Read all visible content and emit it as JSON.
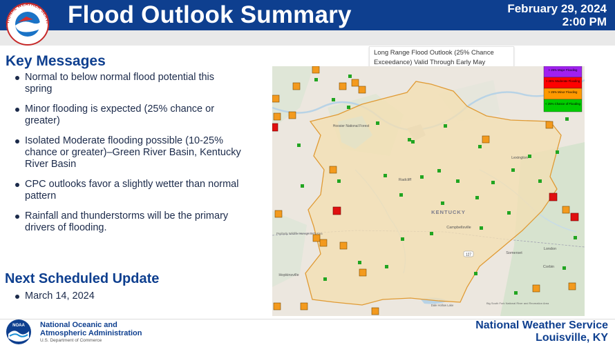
{
  "header": {
    "title": "Flood Outlook Summary",
    "date": "February 29, 2024",
    "time": "2:00 PM",
    "logo_text": "NATIONAL WEATHER SERVICE"
  },
  "key_messages": {
    "heading": "Key Messages",
    "items": [
      "Normal to below normal flood potential this spring",
      "Minor flooding is expected (25% chance or greater)",
      "Isolated Moderate flooding possible (10-25% chance or greater)–Green River Basin, Kentucky River Basin",
      "CPC outlooks favor a slightly wetter than normal pattern",
      "Rainfall and thunderstorms will be the primary drivers of flooding."
    ]
  },
  "next_update": {
    "heading": "Next Scheduled Update",
    "date": "March 14, 2024"
  },
  "map": {
    "caption_line1": "Long Range Flood Outlook (25% Chance",
    "caption_line2": "Exceedance) Valid Through Early May",
    "legend": [
      {
        "label": "> 25% Major Flooding",
        "color": "#a020f0"
      },
      {
        "label": "> 25% Moderate Flooding",
        "color": "#ff0000"
      },
      {
        "label": "> 25% Minor Flooding",
        "color": "#ff9900"
      },
      {
        "label": "< 25% Chance of Flooding",
        "color": "#00cc00"
      }
    ],
    "labels": {
      "state": "KENTUCKY",
      "forest": "Hoosier National Forest",
      "radcliff": "Radcliff",
      "lexington": "Lexington",
      "campbellsville": "Campbellsville",
      "somerset": "Somerset",
      "london": "London",
      "corbin": "Corbin",
      "hopkinsville": "Hopkinsville",
      "peabody": "Peabody Wildlife Management Area",
      "dale_hollow": "Dale Hollow Lake",
      "big_south_fork": "Big South Fork National River and Recreation Area",
      "route": "127"
    }
  },
  "footer": {
    "noaa_line1": "National Oceanic and",
    "noaa_line2": "Atmospheric Administration",
    "noaa_dept": "U.S. Department of Commerce",
    "office_line1": "National Weather Service",
    "office_line2": "Louisville, KY",
    "noaa_logo_text": "NOAA"
  }
}
